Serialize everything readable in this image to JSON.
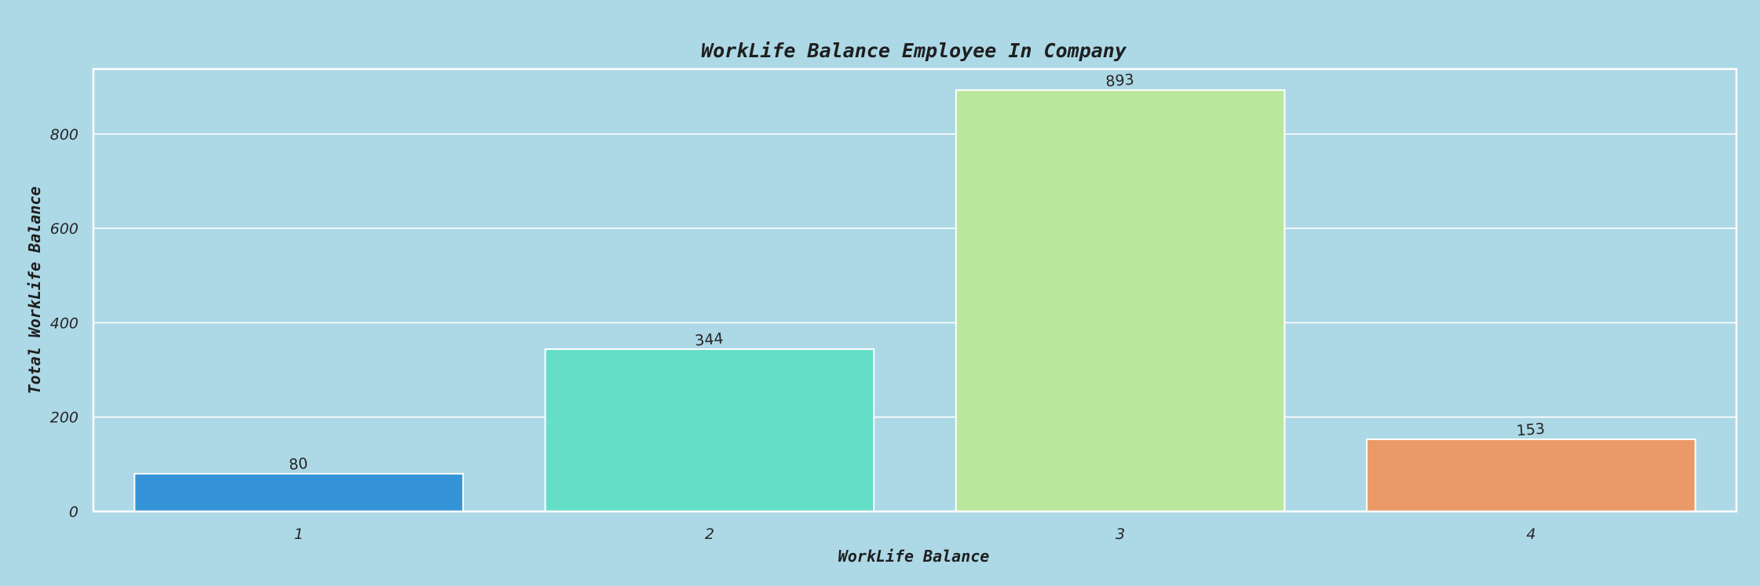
{
  "chart_data": {
    "type": "bar",
    "title": "WorkLife Balance Employee In Company",
    "xlabel": "WorkLife Balance",
    "ylabel": "Total WorkLife Balance",
    "categories": [
      "1",
      "2",
      "3",
      "4"
    ],
    "values": [
      80,
      344,
      893,
      153
    ],
    "data_labels": [
      "80",
      "344",
      "893",
      "153"
    ],
    "colors": [
      "#3594d8",
      "#64dec6",
      "#b9e89d",
      "#ea9a67"
    ],
    "ylim": [
      0,
      937.65
    ],
    "yticks": [
      0,
      200,
      400,
      600,
      800
    ],
    "ytick_labels": [
      "0",
      "200",
      "400",
      "600",
      "800"
    ],
    "grid": true,
    "background": "#add8e6"
  }
}
